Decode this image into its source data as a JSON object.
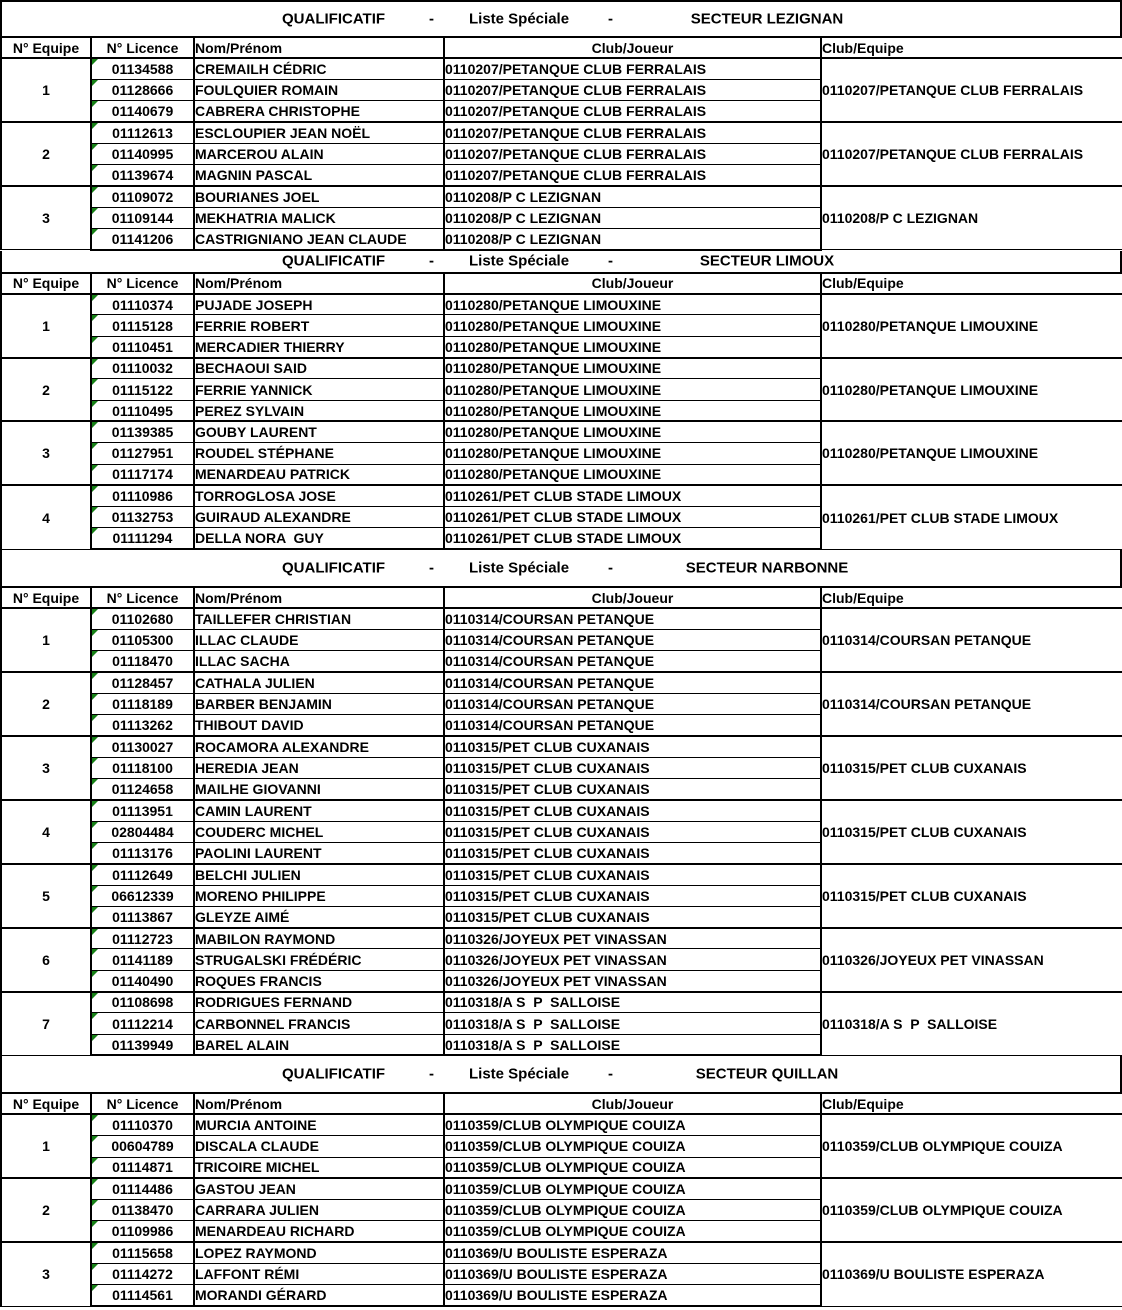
{
  "colors": {
    "grid_line": "#000000",
    "error_triangle": "#168016",
    "background": "#ffffff",
    "text": "#000000"
  },
  "labels": {
    "qualificatif": "QUALIFICATIF",
    "dash": "-",
    "liste_speciale": "Liste Spéciale",
    "headers": {
      "equipe": "N° Equipe",
      "licence": "N° Licence",
      "nom": "Nom/Prénom",
      "club_joueur": "Club/Joueur",
      "club_equipe": "Club/Equipe"
    }
  },
  "sections": [
    {
      "secteur": "SECTEUR LEZIGNAN",
      "teams": [
        {
          "num": "1",
          "club_equipe": "0110207/PETANQUE CLUB FERRALAIS",
          "players": [
            {
              "licence": "01134588",
              "nom": "CREMAILH CÉDRIC",
              "club": "0110207/PETANQUE CLUB FERRALAIS"
            },
            {
              "licence": "01128666",
              "nom": "FOULQUIER ROMAIN",
              "club": "0110207/PETANQUE CLUB FERRALAIS"
            },
            {
              "licence": "01140679",
              "nom": "CABRERA CHRISTOPHE",
              "club": "0110207/PETANQUE CLUB FERRALAIS"
            }
          ]
        },
        {
          "num": "2",
          "club_equipe": "0110207/PETANQUE CLUB FERRALAIS",
          "players": [
            {
              "licence": "01112613",
              "nom": "ESCLOUPIER JEAN NOËL",
              "club": "0110207/PETANQUE CLUB FERRALAIS"
            },
            {
              "licence": "01140995",
              "nom": "MARCEROU ALAIN",
              "club": "0110207/PETANQUE CLUB FERRALAIS"
            },
            {
              "licence": "01139674",
              "nom": "MAGNIN PASCAL",
              "club": "0110207/PETANQUE CLUB FERRALAIS"
            }
          ]
        },
        {
          "num": "3",
          "club_equipe": "0110208/P C LEZIGNAN",
          "players": [
            {
              "licence": "01109072",
              "nom": "BOURIANES JOEL",
              "club": "0110208/P C LEZIGNAN"
            },
            {
              "licence": "01109144",
              "nom": "MEKHATRIA MALICK",
              "club": "0110208/P C LEZIGNAN"
            },
            {
              "licence": "01141206",
              "nom": "CASTRIGNIANO JEAN CLAUDE",
              "club": "0110208/P C LEZIGNAN"
            }
          ]
        }
      ]
    },
    {
      "secteur": "SECTEUR LIMOUX",
      "teams": [
        {
          "num": "1",
          "club_equipe": "0110280/PETANQUE LIMOUXINE",
          "players": [
            {
              "licence": "01110374",
              "nom": "PUJADE JOSEPH",
              "club": "0110280/PETANQUE LIMOUXINE"
            },
            {
              "licence": "01115128",
              "nom": "FERRIE ROBERT",
              "club": "0110280/PETANQUE LIMOUXINE"
            },
            {
              "licence": "01110451",
              "nom": "MERCADIER THIERRY",
              "club": "0110280/PETANQUE LIMOUXINE"
            }
          ]
        },
        {
          "num": "2",
          "club_equipe": "0110280/PETANQUE LIMOUXINE",
          "players": [
            {
              "licence": "01110032",
              "nom": "BECHAOUI SAID",
              "club": "0110280/PETANQUE LIMOUXINE"
            },
            {
              "licence": "01115122",
              "nom": "FERRIE YANNICK",
              "club": "0110280/PETANQUE LIMOUXINE"
            },
            {
              "licence": "01110495",
              "nom": "PEREZ SYLVAIN",
              "club": "0110280/PETANQUE LIMOUXINE"
            }
          ]
        },
        {
          "num": "3",
          "club_equipe": "0110280/PETANQUE LIMOUXINE",
          "players": [
            {
              "licence": "01139385",
              "nom": "GOUBY LAURENT",
              "club": "0110280/PETANQUE LIMOUXINE"
            },
            {
              "licence": "01127951",
              "nom": "ROUDEL STÉPHANE",
              "club": "0110280/PETANQUE LIMOUXINE"
            },
            {
              "licence": "01117174",
              "nom": "MENARDEAU PATRICK",
              "club": "0110280/PETANQUE LIMOUXINE"
            }
          ]
        },
        {
          "num": "4",
          "club_equipe": "0110261/PET CLUB STADE LIMOUX",
          "players": [
            {
              "licence": "01110986",
              "nom": "TORROGLOSA JOSE",
              "club": "0110261/PET CLUB STADE LIMOUX"
            },
            {
              "licence": "01132753",
              "nom": "GUIRAUD ALEXANDRE",
              "club": "0110261/PET CLUB STADE LIMOUX"
            },
            {
              "licence": "01111294",
              "nom": "DELLA NORA  GUY",
              "club": "0110261/PET CLUB STADE LIMOUX"
            }
          ]
        }
      ]
    },
    {
      "secteur": "SECTEUR NARBONNE",
      "teams": [
        {
          "num": "1",
          "club_equipe": "0110314/COURSAN PETANQUE",
          "players": [
            {
              "licence": "01102680",
              "nom": "TAILLEFER CHRISTIAN",
              "club": "0110314/COURSAN PETANQUE"
            },
            {
              "licence": "01105300",
              "nom": "ILLAC CLAUDE",
              "club": "0110314/COURSAN PETANQUE"
            },
            {
              "licence": "01118470",
              "nom": "ILLAC SACHA",
              "club": "0110314/COURSAN PETANQUE"
            }
          ]
        },
        {
          "num": "2",
          "club_equipe": "0110314/COURSAN PETANQUE",
          "players": [
            {
              "licence": "01128457",
              "nom": "CATHALA JULIEN",
              "club": "0110314/COURSAN PETANQUE"
            },
            {
              "licence": "01118189",
              "nom": "BARBER BENJAMIN",
              "club": "0110314/COURSAN PETANQUE"
            },
            {
              "licence": "01113262",
              "nom": "THIBOUT DAVID",
              "club": "0110314/COURSAN PETANQUE"
            }
          ]
        },
        {
          "num": "3",
          "club_equipe": "0110315/PET CLUB CUXANAIS",
          "players": [
            {
              "licence": "01130027",
              "nom": "ROCAMORA ALEXANDRE",
              "club": "0110315/PET CLUB CUXANAIS"
            },
            {
              "licence": "01118100",
              "nom": "HEREDIA JEAN",
              "club": "0110315/PET CLUB CUXANAIS"
            },
            {
              "licence": "01124658",
              "nom": "MAILHE GIOVANNI",
              "club": "0110315/PET CLUB CUXANAIS"
            }
          ]
        },
        {
          "num": "4",
          "club_equipe": "0110315/PET CLUB CUXANAIS",
          "players": [
            {
              "licence": "01113951",
              "nom": "CAMIN LAURENT",
              "club": "0110315/PET CLUB CUXANAIS"
            },
            {
              "licence": "02804484",
              "nom": "COUDERC MICHEL",
              "club": "0110315/PET CLUB CUXANAIS"
            },
            {
              "licence": "01113176",
              "nom": "PAOLINI LAURENT",
              "club": "0110315/PET CLUB CUXANAIS"
            }
          ]
        },
        {
          "num": "5",
          "club_equipe": "0110315/PET CLUB CUXANAIS",
          "players": [
            {
              "licence": "01112649",
              "nom": "BELCHI JULIEN",
              "club": "0110315/PET CLUB CUXANAIS"
            },
            {
              "licence": "06612339",
              "nom": "MORENO PHILIPPE",
              "club": "0110315/PET CLUB CUXANAIS"
            },
            {
              "licence": "01113867",
              "nom": "GLEYZE AIMÉ",
              "club": "0110315/PET CLUB CUXANAIS"
            }
          ]
        },
        {
          "num": "6",
          "club_equipe": "0110326/JOYEUX PET VINASSAN",
          "players": [
            {
              "licence": "01112723",
              "nom": "MABILON RAYMOND",
              "club": "0110326/JOYEUX PET VINASSAN"
            },
            {
              "licence": "01141189",
              "nom": "STRUGALSKI FRÉDÉRIC",
              "club": "0110326/JOYEUX PET VINASSAN"
            },
            {
              "licence": "01140490",
              "nom": "ROQUES FRANCIS",
              "club": "0110326/JOYEUX PET VINASSAN"
            }
          ]
        },
        {
          "num": "7",
          "club_equipe": "0110318/A S  P  SALLOISE",
          "players": [
            {
              "licence": "01108698",
              "nom": "RODRIGUES FERNAND",
              "club": "0110318/A S  P  SALLOISE"
            },
            {
              "licence": "01112214",
              "nom": "CARBONNEL FRANCIS",
              "club": "0110318/A S  P  SALLOISE"
            },
            {
              "licence": "01139949",
              "nom": "BAREL ALAIN",
              "club": "0110318/A S  P  SALLOISE"
            }
          ]
        }
      ]
    },
    {
      "secteur": "SECTEUR QUILLAN",
      "teams": [
        {
          "num": "1",
          "club_equipe": "0110359/CLUB OLYMPIQUE COUIZA",
          "players": [
            {
              "licence": "01110370",
              "nom": "MURCIA ANTOINE",
              "club": "0110359/CLUB OLYMPIQUE COUIZA"
            },
            {
              "licence": "00604789",
              "nom": "DISCALA CLAUDE",
              "club": "0110359/CLUB OLYMPIQUE COUIZA"
            },
            {
              "licence": "01114871",
              "nom": "TRICOIRE MICHEL",
              "club": "0110359/CLUB OLYMPIQUE COUIZA"
            }
          ]
        },
        {
          "num": "2",
          "club_equipe": "0110359/CLUB OLYMPIQUE COUIZA",
          "players": [
            {
              "licence": "01114486",
              "nom": "GASTOU JEAN",
              "club": "0110359/CLUB OLYMPIQUE COUIZA"
            },
            {
              "licence": "01138470",
              "nom": "CARRARA JULIEN",
              "club": "0110359/CLUB OLYMPIQUE COUIZA"
            },
            {
              "licence": "01109986",
              "nom": "MENARDEAU RICHARD",
              "club": "0110359/CLUB OLYMPIQUE COUIZA"
            }
          ]
        },
        {
          "num": "3",
          "club_equipe": "0110369/U BOULISTE ESPERAZA",
          "players": [
            {
              "licence": "01115658",
              "nom": "LOPEZ RAYMOND",
              "club": "0110369/U BOULISTE ESPERAZA"
            },
            {
              "licence": "01114272",
              "nom": "LAFFONT RÉMI",
              "club": "0110369/U BOULISTE ESPERAZA"
            },
            {
              "licence": "01114561",
              "nom": "MORANDI GÉRARD",
              "club": "0110369/U BOULISTE ESPERAZA"
            }
          ]
        }
      ]
    }
  ]
}
